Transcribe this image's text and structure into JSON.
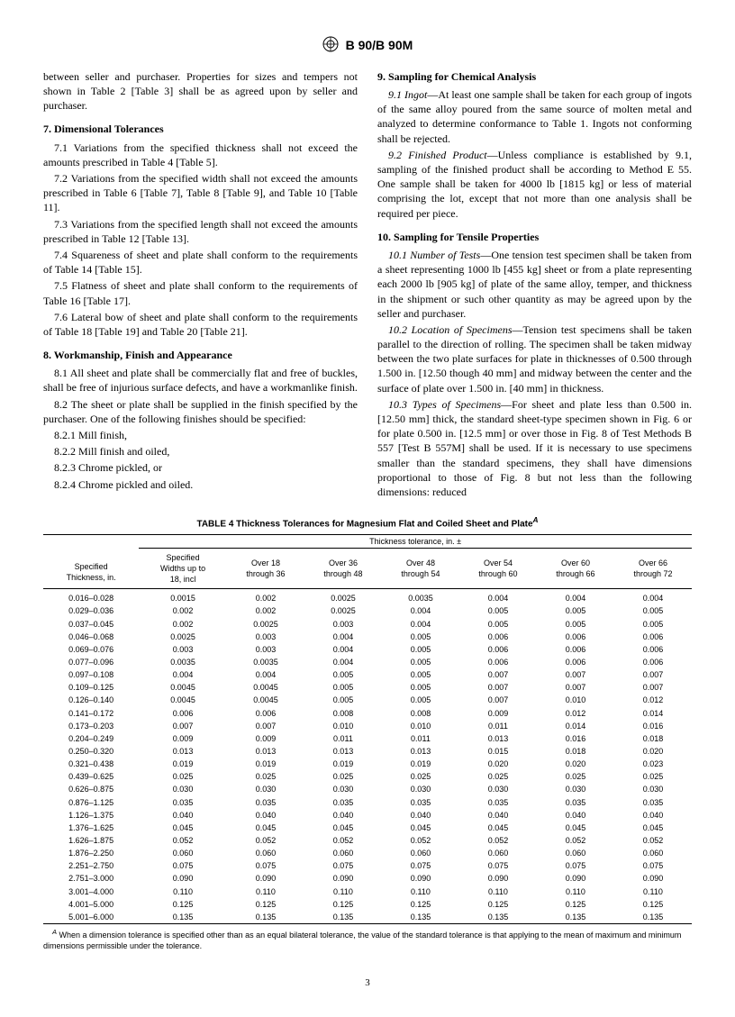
{
  "header": {
    "designation": "B 90/B 90M"
  },
  "leftcol": {
    "intro": "between seller and purchaser. Properties for sizes and tempers not shown in Table 2 [Table 3] shall be as agreed upon by seller and purchaser.",
    "s7": {
      "title": "7. Dimensional Tolerances",
      "p1": "7.1 Variations from the specified thickness shall not exceed the amounts prescribed in Table 4 [Table 5].",
      "p2": "7.2 Variations from the specified width shall not exceed the amounts prescribed in Table 6 [Table 7], Table 8 [Table 9], and Table 10 [Table 11].",
      "p3": "7.3 Variations from the specified length shall not exceed the amounts prescribed in Table 12 [Table 13].",
      "p4": "7.4 Squareness of sheet and plate shall conform to the requirements of Table 14 [Table 15].",
      "p5": "7.5 Flatness of sheet and plate shall conform to the requirements of Table 16 [Table 17].",
      "p6": "7.6 Lateral bow of sheet and plate shall conform to the requirements of Table 18 [Table 19] and Table 20 [Table 21]."
    },
    "s8": {
      "title": "8. Workmanship, Finish and Appearance",
      "p1": "8.1 All sheet and plate shall be commercially flat and free of buckles, shall be free of injurious surface defects, and have a workmanlike finish.",
      "p2": "8.2 The sheet or plate shall be supplied in the finish specified by the purchaser. One of the following finishes should be specified:",
      "l1": "8.2.1 Mill finish,",
      "l2": "8.2.2 Mill finish and oiled,",
      "l3": "8.2.3 Chrome pickled, or",
      "l4": "8.2.4 Chrome pickled and oiled."
    }
  },
  "rightcol": {
    "s9": {
      "title": "9. Sampling for Chemical Analysis",
      "p1_label": "9.1 Ingot",
      "p1": "—At least one sample shall be taken for each group of ingots of the same alloy poured from the same source of molten metal and analyzed to determine conformance to Table 1. Ingots not conforming shall be rejected.",
      "p2_label": "9.2 Finished Product",
      "p2": "—Unless compliance is established by 9.1, sampling of the finished product shall be according to Method E 55. One sample shall be taken for 4000 lb [1815 kg] or less of material comprising the lot, except that not more than one analysis shall be required per piece."
    },
    "s10": {
      "title": "10. Sampling for Tensile Properties",
      "p1_label": "10.1 Number of Tests",
      "p1": "—One tension test specimen shall be taken from a sheet representing 1000 lb [455 kg] sheet or from a plate representing each 2000 lb [905 kg] of plate of the same alloy, temper, and thickness in the shipment or such other quantity as may be agreed upon by the seller and purchaser.",
      "p2_label": "10.2 Location of Specimens",
      "p2": "—Tension test specimens shall be taken parallel to the direction of rolling. The specimen shall be taken midway between the two plate surfaces for plate in thicknesses of 0.500 through 1.500 in. [12.50 though 40 mm] and midway between the center and the surface of plate over 1.500 in. [40 mm] in thickness.",
      "p3_label": "10.3 Types of Specimens",
      "p3": "—For sheet and plate less than 0.500 in. [12.50 mm] thick, the standard sheet-type specimen shown in Fig. 6 or for plate 0.500 in. [12.5 mm] or over those in Fig. 8 of Test Methods B 557 [Test B 557M] shall be used. If it is necessary to use specimens smaller than the standard specimens, they shall have dimensions proportional to those of Fig. 8 but not less than the following dimensions: reduced"
    }
  },
  "table4": {
    "title": "TABLE 4  Thickness Tolerances for Magnesium Flat and Coiled Sheet and Plate",
    "super": "A",
    "span_title": "Thickness tolerance, in. ±",
    "col0": "Specified\nThickness, in.",
    "cols": [
      "Specified\nWidths up to\n18, incl",
      "Over 18\nthrough 36",
      "Over 36\nthrough 48",
      "Over 48\nthrough 54",
      "Over 54\nthrough 60",
      "Over 60\nthrough 66",
      "Over 66\nthrough 72"
    ],
    "rows": [
      [
        "0.016–0.028",
        "0.0015",
        "0.002",
        "0.0025",
        "0.0035",
        "0.004",
        "0.004",
        "0.004"
      ],
      [
        "0.029–0.036",
        "0.002",
        "0.002",
        "0.0025",
        "0.004",
        "0.005",
        "0.005",
        "0.005"
      ],
      [
        "0.037–0.045",
        "0.002",
        "0.0025",
        "0.003",
        "0.004",
        "0.005",
        "0.005",
        "0.005"
      ],
      [
        "0.046–0.068",
        "0.0025",
        "0.003",
        "0.004",
        "0.005",
        "0.006",
        "0.006",
        "0.006"
      ],
      [
        "0.069–0.076",
        "0.003",
        "0.003",
        "0.004",
        "0.005",
        "0.006",
        "0.006",
        "0.006"
      ],
      [
        "0.077–0.096",
        "0.0035",
        "0.0035",
        "0.004",
        "0.005",
        "0.006",
        "0.006",
        "0.006"
      ],
      [
        "0.097–0.108",
        "0.004",
        "0.004",
        "0.005",
        "0.005",
        "0.007",
        "0.007",
        "0.007"
      ],
      [
        "0.109–0.125",
        "0.0045",
        "0.0045",
        "0.005",
        "0.005",
        "0.007",
        "0.007",
        "0.007"
      ],
      [
        "0.126–0.140",
        "0.0045",
        "0.0045",
        "0.005",
        "0.005",
        "0.007",
        "0.010",
        "0.012"
      ],
      [
        "0.141–0.172",
        "0.006",
        "0.006",
        "0.008",
        "0.008",
        "0.009",
        "0.012",
        "0.014"
      ],
      [
        "0.173–0.203",
        "0.007",
        "0.007",
        "0.010",
        "0.010",
        "0.011",
        "0.014",
        "0.016"
      ],
      [
        "0.204–0.249",
        "0.009",
        "0.009",
        "0.011",
        "0.011",
        "0.013",
        "0.016",
        "0.018"
      ],
      [
        "0.250–0.320",
        "0.013",
        "0.013",
        "0.013",
        "0.013",
        "0.015",
        "0.018",
        "0.020"
      ],
      [
        "0.321–0.438",
        "0.019",
        "0.019",
        "0.019",
        "0.019",
        "0.020",
        "0.020",
        "0.023"
      ],
      [
        "0.439–0.625",
        "0.025",
        "0.025",
        "0.025",
        "0.025",
        "0.025",
        "0.025",
        "0.025"
      ],
      [
        "0.626–0.875",
        "0.030",
        "0.030",
        "0.030",
        "0.030",
        "0.030",
        "0.030",
        "0.030"
      ],
      [
        "0.876–1.125",
        "0.035",
        "0.035",
        "0.035",
        "0.035",
        "0.035",
        "0.035",
        "0.035"
      ],
      [
        "1.126–1.375",
        "0.040",
        "0.040",
        "0.040",
        "0.040",
        "0.040",
        "0.040",
        "0.040"
      ],
      [
        "1.376–1.625",
        "0.045",
        "0.045",
        "0.045",
        "0.045",
        "0.045",
        "0.045",
        "0.045"
      ],
      [
        "1.626–1.875",
        "0.052",
        "0.052",
        "0.052",
        "0.052",
        "0.052",
        "0.052",
        "0.052"
      ],
      [
        "1.876–2.250",
        "0.060",
        "0.060",
        "0.060",
        "0.060",
        "0.060",
        "0.060",
        "0.060"
      ],
      [
        "2.251–2.750",
        "0.075",
        "0.075",
        "0.075",
        "0.075",
        "0.075",
        "0.075",
        "0.075"
      ],
      [
        "2.751–3.000",
        "0.090",
        "0.090",
        "0.090",
        "0.090",
        "0.090",
        "0.090",
        "0.090"
      ],
      [
        "3.001–4.000",
        "0.110",
        "0.110",
        "0.110",
        "0.110",
        "0.110",
        "0.110",
        "0.110"
      ],
      [
        "4.001–5.000",
        "0.125",
        "0.125",
        "0.125",
        "0.125",
        "0.125",
        "0.125",
        "0.125"
      ],
      [
        "5.001–6.000",
        "0.135",
        "0.135",
        "0.135",
        "0.135",
        "0.135",
        "0.135",
        "0.135"
      ]
    ],
    "footnote_sup": "A",
    "footnote": " When a dimension tolerance is specified other than as an equal bilateral tolerance, the value of the standard tolerance is that applying to the mean of maximum and minimum dimensions permissible under the tolerance."
  },
  "pagenum": "3"
}
